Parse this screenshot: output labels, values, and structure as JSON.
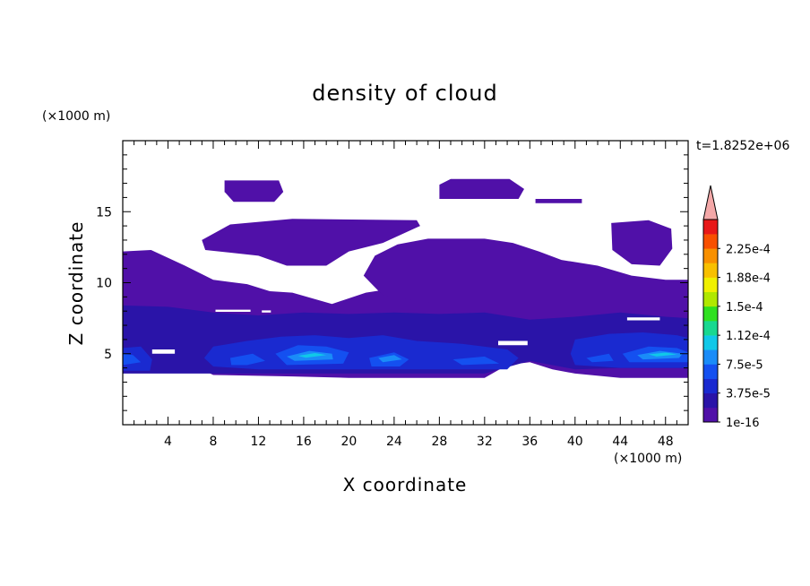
{
  "chart_data": {
    "type": "heatmap",
    "title": "density of cloud",
    "xlabel": "X coordinate",
    "ylabel": "Z coordinate",
    "x_unit": "(×1000 m)",
    "y_unit": "(×1000 m)",
    "time_label": "t=1.8252e+06",
    "xlim": [
      0,
      50
    ],
    "ylim": [
      0,
      20
    ],
    "x_ticks": [
      4,
      8,
      12,
      16,
      20,
      24,
      28,
      32,
      36,
      40,
      44,
      48
    ],
    "y_ticks": [
      5,
      10,
      15
    ],
    "colorbar": {
      "levels": [
        "1e-16",
        "3.75e-5",
        "7.5e-5",
        "1.12e-4",
        "1.5e-4",
        "1.88e-4",
        "2.25e-4"
      ],
      "colors": [
        "#5010a8",
        "#2a14a8",
        "#1a2ad0",
        "#1450f0",
        "#1a8cf8",
        "#10c8e8",
        "#18d890",
        "#30e020",
        "#b0e800",
        "#f0f000",
        "#f8c000",
        "#f89000",
        "#f85000",
        "#e81818"
      ],
      "overflow_color": "#f4a8a8"
    },
    "regions": [
      {
        "name": "upper-cloud-left",
        "level": 0,
        "points": [
          [
            9,
            17.2
          ],
          [
            13.8,
            17.2
          ],
          [
            14.2,
            16.4
          ],
          [
            13.4,
            15.7
          ],
          [
            9.8,
            15.7
          ],
          [
            9,
            16.4
          ]
        ]
      },
      {
        "name": "upper-cloud-right",
        "level": 0,
        "points": [
          [
            28,
            16.9
          ],
          [
            29,
            17.3
          ],
          [
            34.2,
            17.3
          ],
          [
            35.5,
            16.6
          ],
          [
            35,
            15.9
          ],
          [
            28,
            15.9
          ]
        ]
      },
      {
        "name": "upper-cloud-streak",
        "level": 0,
        "points": [
          [
            36.5,
            15.9
          ],
          [
            40.6,
            15.9
          ],
          [
            40.6,
            15.6
          ],
          [
            36.5,
            15.6
          ]
        ]
      },
      {
        "name": "mid-cloud-band",
        "level": 0,
        "points": [
          [
            7,
            13
          ],
          [
            9.5,
            14.1
          ],
          [
            15,
            14.5
          ],
          [
            26,
            14.4
          ],
          [
            26.3,
            14
          ],
          [
            23,
            12.8
          ],
          [
            20,
            12.2
          ],
          [
            18,
            11.2
          ],
          [
            14.5,
            11.2
          ],
          [
            12,
            11.9
          ],
          [
            7.3,
            12.3
          ]
        ]
      },
      {
        "name": "right-upper-cloud",
        "level": 0,
        "points": [
          [
            43.2,
            14.2
          ],
          [
            46.5,
            14.4
          ],
          [
            48.5,
            13.8
          ],
          [
            48.6,
            12.4
          ],
          [
            47.5,
            11.2
          ],
          [
            45,
            11.3
          ],
          [
            43.3,
            12.3
          ]
        ]
      },
      {
        "name": "main-cloud-layer",
        "level": 0,
        "points": [
          [
            0,
            12.2
          ],
          [
            2.5,
            12.3
          ],
          [
            5.5,
            11.2
          ],
          [
            8,
            10.2
          ],
          [
            11,
            9.9
          ],
          [
            13,
            9.4
          ],
          [
            15,
            9.3
          ],
          [
            18.5,
            8.5
          ],
          [
            21.5,
            9.3
          ],
          [
            24,
            9.6
          ],
          [
            27,
            9.9
          ],
          [
            28.5,
            9.6
          ],
          [
            30,
            9.3
          ],
          [
            34,
            9.2
          ],
          [
            38,
            9
          ],
          [
            43,
            9.1
          ],
          [
            46,
            9.3
          ],
          [
            48.5,
            9.6
          ],
          [
            50,
            9.8
          ],
          [
            50,
            3.3
          ],
          [
            44,
            3.3
          ],
          [
            40,
            3.6
          ],
          [
            38,
            3.9
          ],
          [
            36,
            4.4
          ],
          [
            34,
            4.2
          ],
          [
            32,
            3.3
          ],
          [
            20,
            3.3
          ],
          [
            15,
            3.4
          ],
          [
            8,
            3.5
          ],
          [
            6.2,
            4.2
          ],
          [
            5.5,
            5.2
          ],
          [
            3,
            5.2
          ],
          [
            2,
            5.7
          ],
          [
            0.8,
            5.6
          ],
          [
            0,
            4.7
          ]
        ]
      },
      {
        "name": "upper-right-dome",
        "level": 0,
        "points": [
          [
            21.3,
            10.5
          ],
          [
            22.3,
            11.9
          ],
          [
            24.3,
            12.7
          ],
          [
            27,
            13.1
          ],
          [
            32,
            13.1
          ],
          [
            34.5,
            12.8
          ],
          [
            36.8,
            12.2
          ],
          [
            38.8,
            11.6
          ],
          [
            42,
            11.2
          ],
          [
            45,
            10.5
          ],
          [
            48,
            10.2
          ],
          [
            50,
            10.2
          ],
          [
            50,
            8.3
          ],
          [
            45,
            8.2
          ],
          [
            40,
            8.2
          ],
          [
            34,
            8.2
          ],
          [
            28,
            8.5
          ],
          [
            23,
            9.1
          ]
        ]
      },
      {
        "name": "lower-dense-band",
        "level": 1,
        "points": [
          [
            0,
            8.4
          ],
          [
            4,
            8.3
          ],
          [
            8,
            7.9
          ],
          [
            12,
            7.7
          ],
          [
            16,
            7.9
          ],
          [
            20,
            7.8
          ],
          [
            24,
            7.9
          ],
          [
            28,
            7.8
          ],
          [
            32,
            7.9
          ],
          [
            36,
            7.4
          ],
          [
            40,
            7.6
          ],
          [
            44,
            7.9
          ],
          [
            48,
            7.6
          ],
          [
            50,
            7.5
          ],
          [
            50,
            4
          ],
          [
            44,
            4
          ],
          [
            40,
            3.9
          ],
          [
            36,
            4.5
          ],
          [
            32,
            3.6
          ],
          [
            24,
            3.6
          ],
          [
            16,
            3.6
          ],
          [
            8,
            3.6
          ],
          [
            4,
            3.6
          ],
          [
            0,
            3.6
          ]
        ]
      },
      {
        "name": "cell-level-2a",
        "level": 2,
        "points": [
          [
            8,
            5.5
          ],
          [
            11,
            5.9
          ],
          [
            14,
            6.2
          ],
          [
            17,
            6.3
          ],
          [
            20,
            6.1
          ],
          [
            23,
            6.3
          ],
          [
            26,
            5.9
          ],
          [
            30,
            5.7
          ],
          [
            34,
            5.3
          ],
          [
            35,
            4.7
          ],
          [
            34,
            3.9
          ],
          [
            28,
            3.9
          ],
          [
            20,
            3.9
          ],
          [
            12,
            3.9
          ],
          [
            8,
            4.1
          ],
          [
            7.2,
            4.7
          ]
        ]
      },
      {
        "name": "cell-level-2b",
        "level": 2,
        "points": [
          [
            40,
            6
          ],
          [
            43,
            6.4
          ],
          [
            46,
            6.5
          ],
          [
            49,
            6.3
          ],
          [
            50,
            6.1
          ],
          [
            50,
            4
          ],
          [
            44,
            4
          ],
          [
            40,
            4.2
          ],
          [
            39.6,
            5
          ]
        ]
      },
      {
        "name": "cell-level-2c",
        "level": 2,
        "points": [
          [
            0,
            5.4
          ],
          [
            1.6,
            5.5
          ],
          [
            2.6,
            4.6
          ],
          [
            2.4,
            3.8
          ],
          [
            0,
            3.8
          ]
        ]
      },
      {
        "name": "cell-level-3a",
        "level": 3,
        "points": [
          [
            13.5,
            5
          ],
          [
            15.5,
            5.6
          ],
          [
            18,
            5.5
          ],
          [
            20,
            5.1
          ],
          [
            19.5,
            4.3
          ],
          [
            14.5,
            4.2
          ]
        ]
      },
      {
        "name": "cell-level-3b",
        "level": 3,
        "points": [
          [
            21.8,
            4.7
          ],
          [
            24,
            5.1
          ],
          [
            25.3,
            4.6
          ],
          [
            24.5,
            4.1
          ],
          [
            22,
            4.1
          ]
        ]
      },
      {
        "name": "cell-level-3c",
        "level": 3,
        "points": [
          [
            9.5,
            4.7
          ],
          [
            11.5,
            5
          ],
          [
            12.6,
            4.5
          ],
          [
            11,
            4.2
          ],
          [
            9.6,
            4.2
          ]
        ]
      },
      {
        "name": "cell-level-3d",
        "level": 3,
        "points": [
          [
            44.2,
            5
          ],
          [
            46.5,
            5.5
          ],
          [
            49,
            5.4
          ],
          [
            50,
            5.1
          ],
          [
            50,
            4.4
          ],
          [
            44.8,
            4.4
          ]
        ]
      },
      {
        "name": "cell-level-3e",
        "level": 3,
        "points": [
          [
            41,
            4.7
          ],
          [
            43,
            5
          ],
          [
            43.4,
            4.5
          ],
          [
            41.5,
            4.4
          ]
        ]
      },
      {
        "name": "cell-level-3f",
        "level": 3,
        "points": [
          [
            0,
            5
          ],
          [
            0.9,
            4.9
          ],
          [
            1.6,
            4.4
          ],
          [
            0,
            4.2
          ]
        ]
      },
      {
        "name": "cell-level-3g",
        "level": 3,
        "points": [
          [
            29.2,
            4.6
          ],
          [
            32,
            4.8
          ],
          [
            33.3,
            4.3
          ],
          [
            30,
            4.2
          ]
        ]
      },
      {
        "name": "core-level-4a",
        "level": 4,
        "points": [
          [
            14.5,
            4.8
          ],
          [
            16.5,
            5.2
          ],
          [
            18.5,
            5
          ],
          [
            18.6,
            4.6
          ],
          [
            15.2,
            4.5
          ]
        ]
      },
      {
        "name": "core-level-4b",
        "level": 4,
        "points": [
          [
            45.5,
            4.9
          ],
          [
            47.5,
            5.2
          ],
          [
            49.5,
            5
          ],
          [
            49.2,
            4.7
          ],
          [
            46,
            4.6
          ]
        ]
      },
      {
        "name": "core-level-4c",
        "level": 4,
        "points": [
          [
            22.6,
            4.7
          ],
          [
            24,
            4.9
          ],
          [
            24.7,
            4.6
          ],
          [
            23,
            4.4
          ]
        ]
      },
      {
        "name": "core-level-5a",
        "level": 5,
        "points": [
          [
            15.5,
            4.85
          ],
          [
            17,
            5.05
          ],
          [
            18,
            4.9
          ],
          [
            16.2,
            4.72
          ]
        ]
      },
      {
        "name": "core-level-5b",
        "level": 5,
        "points": [
          [
            46.5,
            4.95
          ],
          [
            48,
            5.08
          ],
          [
            49,
            4.95
          ],
          [
            47.2,
            4.8
          ]
        ]
      }
    ],
    "gaps": [
      {
        "name": "gap-strip-a",
        "points": [
          [
            8.2,
            8.1
          ],
          [
            11.3,
            8.1
          ],
          [
            11.3,
            7.95
          ],
          [
            8.2,
            7.95
          ]
        ]
      },
      {
        "name": "gap-strip-b",
        "points": [
          [
            12.3,
            8.05
          ],
          [
            13.1,
            8.05
          ],
          [
            13.1,
            7.9
          ],
          [
            12.3,
            7.9
          ]
        ]
      },
      {
        "name": "gap-strip-c",
        "points": [
          [
            44.6,
            7.55
          ],
          [
            47.5,
            7.55
          ],
          [
            47.5,
            7.35
          ],
          [
            44.6,
            7.35
          ]
        ]
      },
      {
        "name": "gap-strip-d",
        "points": [
          [
            33.2,
            5.9
          ],
          [
            35.8,
            5.9
          ],
          [
            35.8,
            5.6
          ],
          [
            33.2,
            5.6
          ]
        ]
      },
      {
        "name": "gap-strip-e",
        "points": [
          [
            2.6,
            5.3
          ],
          [
            4.6,
            5.3
          ],
          [
            4.6,
            5
          ],
          [
            2.6,
            5
          ]
        ]
      }
    ]
  }
}
